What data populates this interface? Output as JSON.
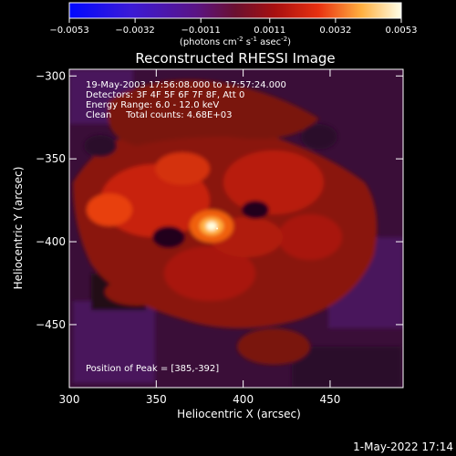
{
  "chart_data": {
    "type": "heatmap",
    "title": "Reconstructed RHESSI Image",
    "xlabel": "Heliocentric X (arcsec)",
    "ylabel": "Heliocentric Y (arcsec)",
    "xlim": [
      300,
      492
    ],
    "ylim": [
      -488,
      -296
    ],
    "x_ticks": [
      300,
      350,
      400,
      450
    ],
    "y_ticks": [
      -300,
      -350,
      -400,
      -450
    ],
    "colorbar": {
      "range": [
        -0.0053,
        0.0053
      ],
      "tick_values": [
        -0.0053,
        -0.0032,
        -0.0011,
        0.0011,
        0.0032,
        0.0053
      ],
      "tick_labels": [
        "-0.0053",
        "-0.0032",
        "-0.0011",
        "0.0011",
        "0.0032",
        "0.0053"
      ],
      "units_line": "(photons cm",
      "units_sup1": "-2",
      "units_mid": " s",
      "units_sup2": "-1",
      "units_end": " asec",
      "units_sup3": "-2",
      "units_close": ")"
    },
    "annotations": [
      "19-May-2003 17:56:08.000 to 17:57:24.000",
      "Detectors: 3F 4F 5F 6F 7F 8F, Att 0",
      "Energy Range: 6.0 - 12.0 keV",
      "Clean     Total counts: 4.68E+03"
    ],
    "peak": {
      "label": "Position of Peak = [385,-392]",
      "x": 385,
      "y": -392
    },
    "timestamp": "1-May-2022 17:14",
    "grid": false
  }
}
